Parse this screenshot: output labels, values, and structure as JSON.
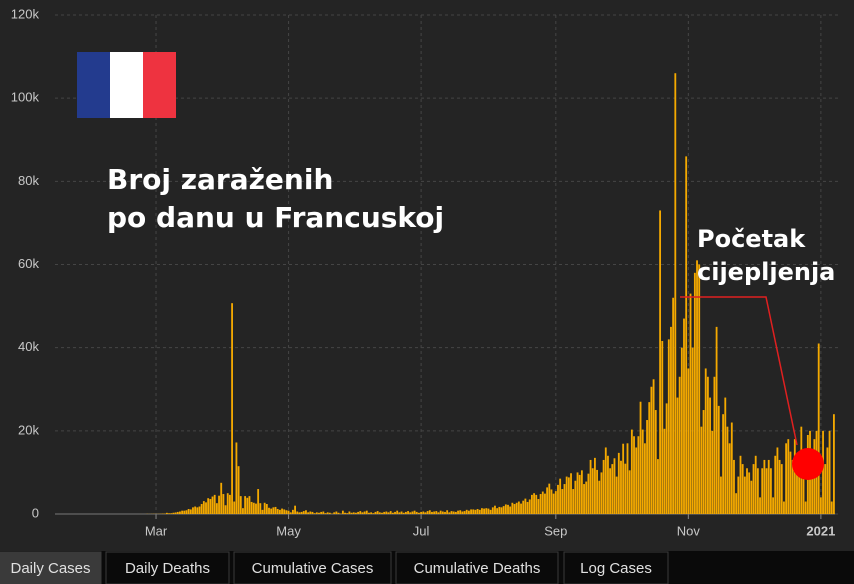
{
  "chart_data": {
    "type": "bar",
    "title": [
      "Broj zaraženih",
      "po danu u Francuskoj"
    ],
    "annotation": [
      "Početak",
      "cijepljenja"
    ],
    "color": "#f4a900",
    "grid": true,
    "ylim": [
      0,
      120000
    ],
    "yticks": [
      0,
      {
        "value": 20000,
        "label": "20k"
      },
      {
        "value": 40000,
        "label": "40k"
      },
      {
        "value": 60000,
        "label": "60k"
      },
      {
        "value": 80000,
        "label": "80k"
      },
      {
        "value": 100000,
        "label": "100k"
      },
      {
        "value": 120000,
        "label": "120k"
      }
    ],
    "categories": [
      null,
      null,
      null,
      null,
      null,
      null,
      null,
      null,
      null,
      null,
      null,
      null,
      null,
      null,
      null,
      null,
      null,
      null,
      null,
      null,
      null,
      null,
      null,
      null,
      null,
      null,
      null,
      null,
      null,
      null,
      null,
      null,
      null,
      null,
      null,
      null,
      null,
      null,
      null,
      null,
      null,
      null,
      null,
      null,
      null,
      null,
      "Mar",
      null,
      null,
      null,
      null,
      null,
      null,
      null,
      null,
      null,
      null,
      null,
      null,
      null,
      null,
      null,
      null,
      null,
      null,
      null,
      null,
      null,
      null,
      null,
      null,
      null,
      null,
      null,
      null,
      null,
      null,
      null,
      null,
      null,
      null,
      null,
      null,
      null,
      null,
      null,
      null,
      null,
      null,
      null,
      null,
      null,
      null,
      null,
      null,
      null,
      null,
      null,
      null,
      null,
      null,
      null,
      null,
      null,
      null,
      null,
      null,
      "May",
      null,
      null,
      null,
      null,
      null,
      null,
      null,
      null,
      null,
      null,
      null,
      null,
      null,
      null,
      null,
      null,
      null,
      null,
      null,
      null,
      null,
      null,
      null,
      null,
      null,
      null,
      null,
      null,
      null,
      null,
      null,
      null,
      null,
      null,
      null,
      null,
      null,
      null,
      null,
      null,
      null,
      null,
      null,
      null,
      null,
      null,
      null,
      null,
      null,
      null,
      null,
      null,
      null,
      null,
      null,
      null,
      null,
      null,
      null,
      null,
      "Jul",
      null,
      null,
      null,
      null,
      null,
      null,
      null,
      null,
      null,
      null,
      null,
      null,
      null,
      null,
      null,
      null,
      null,
      null,
      null,
      null,
      null,
      null,
      null,
      null,
      null,
      null,
      null,
      null,
      null,
      null,
      null,
      null,
      null,
      null,
      null,
      null,
      null,
      null,
      null,
      null,
      null,
      null,
      null,
      null,
      null,
      null,
      null,
      null,
      null,
      null,
      null,
      null,
      null,
      null,
      null,
      null,
      null,
      null,
      null,
      null,
      null,
      "Sep",
      null,
      null,
      null,
      null,
      null,
      null,
      null,
      null,
      null,
      null,
      null,
      null,
      null,
      null,
      null,
      null,
      null,
      null,
      null,
      null,
      null,
      null,
      null,
      null,
      null,
      null,
      null,
      null,
      null,
      null,
      null,
      null,
      null,
      null,
      null,
      null,
      null,
      null,
      null,
      null,
      null,
      null,
      null,
      null,
      null,
      null,
      null,
      null,
      null,
      null,
      null,
      null,
      null,
      null,
      null,
      null,
      null,
      null,
      null,
      null,
      "Nov",
      null,
      null,
      null,
      null,
      null,
      null,
      null,
      null,
      null,
      null,
      null,
      null,
      null,
      null,
      null,
      null,
      null,
      null,
      null,
      null,
      null,
      null,
      null,
      null,
      null,
      null,
      null,
      null,
      null,
      null,
      null,
      null,
      null,
      null,
      null,
      null,
      null,
      null,
      null,
      null,
      null,
      null,
      null,
      null,
      null,
      null,
      null,
      null,
      null,
      null,
      null,
      null,
      null,
      null,
      null,
      null,
      null,
      null,
      null,
      null,
      "2021",
      null,
      null,
      null,
      null,
      null,
      null
    ],
    "values": [
      0,
      0,
      0,
      0,
      0,
      0,
      0,
      0,
      0,
      0,
      0,
      0,
      0,
      0,
      0,
      0,
      0,
      0,
      0,
      0,
      0,
      0,
      0,
      0,
      0,
      0,
      0,
      0,
      0,
      0,
      0,
      0,
      0,
      0,
      0,
      0,
      0,
      0,
      0,
      10,
      0,
      10,
      40,
      20,
      40,
      50,
      30,
      40,
      60,
      100,
      100,
      280,
      180,
      190,
      300,
      370,
      500,
      600,
      800,
      800,
      900,
      1200,
      1100,
      1600,
      1800,
      1600,
      1800,
      2400,
      3100,
      2800,
      3800,
      3600,
      4200,
      4600,
      2600,
      4400,
      7500,
      4800,
      2100,
      5000,
      4600,
      50700,
      3000,
      17200,
      11500,
      4300,
      1400,
      4300,
      3900,
      4300,
      2900,
      2700,
      2500,
      6000,
      2600,
      1000,
      2700,
      2400,
      1500,
      1300,
      1600,
      1700,
      1200,
      1000,
      1300,
      1100,
      900,
      800,
      400,
      1000,
      2000,
      600,
      400,
      500,
      700,
      900,
      400,
      600,
      500,
      200,
      400,
      300,
      500,
      600,
      200,
      400,
      300,
      100,
      400,
      600,
      300,
      100,
      800,
      300,
      200,
      600,
      300,
      400,
      300,
      500,
      700,
      400,
      600,
      800,
      300,
      400,
      200,
      500,
      700,
      400,
      300,
      500,
      600,
      400,
      700,
      300,
      500,
      800,
      400,
      600,
      300,
      500,
      700,
      400,
      600,
      800,
      500,
      300,
      500,
      600,
      400,
      700,
      900,
      500,
      600,
      700,
      400,
      800,
      600,
      500,
      900,
      400,
      700,
      600,
      500,
      800,
      900,
      600,
      700,
      1000,
      800,
      1100,
      1100,
      1000,
      1200,
      1000,
      1400,
      1300,
      1400,
      1300,
      1000,
      1600,
      2000,
      1400,
      1700,
      1600,
      1900,
      2300,
      2200,
      1800,
      2700,
      2400,
      2700,
      3000,
      2500,
      3200,
      3700,
      2900,
      3500,
      4600,
      5000,
      4600,
      3600,
      4800,
      5400,
      4900,
      6400,
      7300,
      5900,
      4900,
      5500,
      7000,
      8500,
      6000,
      7200,
      9000,
      8800,
      9800,
      6000,
      8000,
      10000,
      9400,
      10500,
      7200,
      7800,
      9700,
      13000,
      11000,
      13500,
      10600,
      8000,
      10000,
      13000,
      16000,
      14000,
      11000,
      12000,
      13400,
      9000,
      14700,
      12800,
      16900,
      12100,
      17000,
      10500,
      20300,
      18700,
      16000,
      18700,
      27000,
      20300,
      17000,
      22600,
      26900,
      30600,
      32400,
      25000,
      13200,
      73000,
      41600,
      20500,
      26600,
      42000,
      45000,
      52000,
      106000,
      28000,
      33000,
      40000,
      47000,
      86000,
      35000,
      53000,
      40000,
      58000,
      61000,
      60000,
      21000,
      25000,
      35000,
      33000,
      28000,
      20000,
      33000,
      45000,
      26000,
      9000,
      24000,
      28000,
      21000,
      17000,
      22000,
      13000,
      5000,
      9000,
      14000,
      12000,
      9000,
      11000,
      10000,
      8000,
      12000,
      14000,
      11000,
      4000,
      11000,
      13000,
      11000,
      13000,
      11000,
      4000,
      14000,
      16000,
      13000,
      12000,
      3000,
      17000,
      18000,
      15000,
      13000,
      18000,
      11000,
      14000,
      21000,
      12000,
      3000,
      19000,
      20000,
      11000,
      18000,
      20000,
      41000,
      4000,
      20000,
      12000,
      16000,
      20000,
      3000,
      24000
    ]
  },
  "tabs": [
    "Daily Cases",
    "Daily Deaths",
    "Cumulative Cases",
    "Cumulative Deaths",
    "Log Cases"
  ]
}
